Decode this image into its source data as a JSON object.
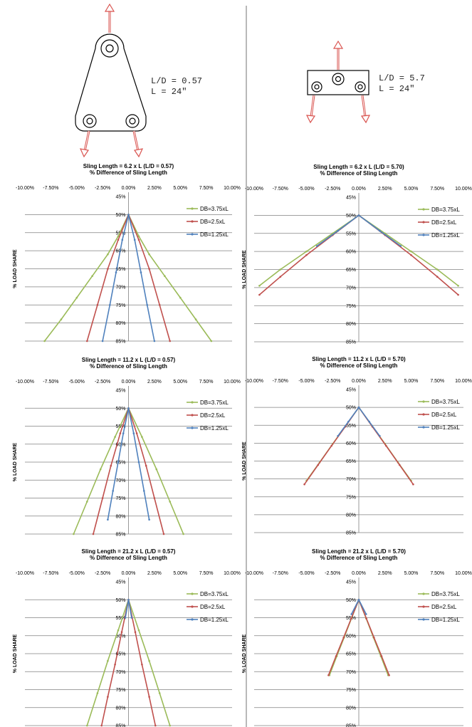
{
  "diagrams": [
    {
      "ld_label": "L/D = 0.57",
      "l_label": "L = 24\""
    },
    {
      "ld_label": "L/D = 5.7",
      "l_label": "L = 24\""
    }
  ],
  "colors": {
    "db375": "#9bbb59",
    "db25": "#c0504d",
    "db125": "#4f81bd",
    "arrow": "#d9534f"
  },
  "chart_data": [
    {
      "type": "line",
      "title": "Sling Length = 6.2 x L    (L/D = 0.57)",
      "xlabel": "% Difference of Sling Length",
      "ylabel": "% LOAD SHARE",
      "xlim": [
        -0.1,
        0.1
      ],
      "ylim": [
        0.45,
        0.85
      ],
      "y_inverted": true,
      "legend": "top-right",
      "x_ticks": [
        "-10.00%",
        "-7.50%",
        "-5.00%",
        "-2.50%",
        "0.00%",
        "2.50%",
        "5.00%",
        "7.50%",
        "10.00%"
      ],
      "y_ticks": [
        "45%",
        "50%",
        "55%",
        "60%",
        "65%",
        "70%",
        "75%",
        "80%",
        "85%"
      ],
      "series": [
        {
          "name": "DB=3.75xL",
          "color": "#9bbb59",
          "points": [
            [
              -0.081,
              0.85
            ],
            [
              -0.065,
              0.79
            ],
            [
              -0.05,
              0.73
            ],
            [
              -0.035,
              0.67
            ],
            [
              -0.02,
              0.61
            ],
            [
              -0.01,
              0.56
            ],
            [
              0,
              0.5
            ],
            [
              0.01,
              0.56
            ],
            [
              0.02,
              0.61
            ],
            [
              0.035,
              0.67
            ],
            [
              0.05,
              0.73
            ],
            [
              0.065,
              0.79
            ],
            [
              0.08,
              0.85
            ]
          ]
        },
        {
          "name": "DB=2.5xL",
          "color": "#c0504d",
          "points": [
            [
              -0.04,
              0.85
            ],
            [
              -0.03,
              0.75
            ],
            [
              -0.02,
              0.65
            ],
            [
              -0.01,
              0.57
            ],
            [
              0,
              0.5
            ],
            [
              0.01,
              0.57
            ],
            [
              0.02,
              0.65
            ],
            [
              0.03,
              0.75
            ],
            [
              0.04,
              0.85
            ]
          ]
        },
        {
          "name": "DB=1.25xL",
          "color": "#4f81bd",
          "points": [
            [
              -0.025,
              0.85
            ],
            [
              -0.018,
              0.75
            ],
            [
              -0.012,
              0.66
            ],
            [
              -0.006,
              0.57
            ],
            [
              0,
              0.5
            ],
            [
              0.006,
              0.57
            ],
            [
              0.012,
              0.66
            ],
            [
              0.018,
              0.75
            ],
            [
              0.025,
              0.85
            ]
          ]
        }
      ]
    },
    {
      "type": "line",
      "title": "Sling Length = 6.2 x L    (L/D = 5.70)",
      "xlabel": "% Difference of Sling Length",
      "ylabel": "% LOAD SHARE",
      "xlim": [
        -0.1,
        0.1
      ],
      "ylim": [
        0.45,
        0.85
      ],
      "y_inverted": true,
      "legend": "top-right",
      "x_ticks": [
        "-10.00%",
        "-7.50%",
        "-5.00%",
        "-2.50%",
        "0.00%",
        "2.50%",
        "5.00%",
        "7.50%",
        "10.00%"
      ],
      "y_ticks": [
        "45%",
        "50%",
        "55%",
        "60%",
        "65%",
        "70%",
        "75%",
        "80%",
        "85%"
      ],
      "series": [
        {
          "name": "DB=3.75xL",
          "color": "#9bbb59",
          "points": [
            [
              -0.095,
              0.695
            ],
            [
              -0.075,
              0.65
            ],
            [
              -0.05,
              0.6
            ],
            [
              -0.025,
              0.55
            ],
            [
              0,
              0.5
            ],
            [
              0.025,
              0.55
            ],
            [
              0.05,
              0.6
            ],
            [
              0.075,
              0.65
            ],
            [
              0.095,
              0.695
            ]
          ]
        },
        {
          "name": "DB=2.5xL",
          "color": "#c0504d",
          "points": [
            [
              -0.095,
              0.72
            ],
            [
              -0.075,
              0.67
            ],
            [
              -0.05,
              0.61
            ],
            [
              -0.025,
              0.555
            ],
            [
              0,
              0.5
            ],
            [
              0.025,
              0.555
            ],
            [
              0.05,
              0.61
            ],
            [
              0.075,
              0.67
            ],
            [
              0.095,
              0.72
            ]
          ]
        },
        {
          "name": "DB=1.25xL",
          "color": "#4f81bd",
          "points": [
            [
              -0.04,
              0.585
            ],
            [
              -0.02,
              0.543
            ],
            [
              0,
              0.5
            ],
            [
              0.02,
              0.543
            ],
            [
              0.04,
              0.585
            ]
          ]
        }
      ]
    },
    {
      "type": "line",
      "title": "Sling Length = 11.2 x L    (L/D = 0.57)",
      "xlabel": "% Difference of Sling Length",
      "ylabel": "% LOAD SHARE",
      "xlim": [
        -0.1,
        0.1
      ],
      "ylim": [
        0.45,
        0.85
      ],
      "y_inverted": true,
      "legend": "top-right",
      "x_ticks": [
        "-10.00%",
        "-7.50%",
        "-5.00%",
        "-2.50%",
        "0.00%",
        "2.50%",
        "5.00%",
        "7.50%",
        "10.00%"
      ],
      "y_ticks": [
        "45%",
        "50%",
        "55%",
        "60%",
        "65%",
        "70%",
        "75%",
        "80%",
        "85%"
      ],
      "series": [
        {
          "name": "DB=3.75xL",
          "color": "#9bbb59",
          "points": [
            [
              -0.053,
              0.85
            ],
            [
              -0.04,
              0.76
            ],
            [
              -0.027,
              0.67
            ],
            [
              -0.013,
              0.58
            ],
            [
              0,
              0.5
            ],
            [
              0.013,
              0.58
            ],
            [
              0.027,
              0.67
            ],
            [
              0.04,
              0.76
            ],
            [
              0.053,
              0.85
            ]
          ]
        },
        {
          "name": "DB=2.5xL",
          "color": "#c0504d",
          "points": [
            [
              -0.034,
              0.85
            ],
            [
              -0.025,
              0.75
            ],
            [
              -0.017,
              0.66
            ],
            [
              -0.008,
              0.57
            ],
            [
              0,
              0.5
            ],
            [
              0.008,
              0.57
            ],
            [
              0.017,
              0.66
            ],
            [
              0.025,
              0.75
            ],
            [
              0.034,
              0.85
            ]
          ]
        },
        {
          "name": "DB=1.25xL",
          "color": "#4f81bd",
          "points": [
            [
              -0.02,
              0.81
            ],
            [
              -0.015,
              0.73
            ],
            [
              -0.01,
              0.65
            ],
            [
              -0.005,
              0.57
            ],
            [
              0,
              0.5
            ],
            [
              0.005,
              0.57
            ],
            [
              0.01,
              0.65
            ],
            [
              0.015,
              0.73
            ],
            [
              0.02,
              0.81
            ]
          ]
        }
      ]
    },
    {
      "type": "line",
      "title": "Sling Length = 11.2 x L    (L/D = 5.70)",
      "xlabel": "% Difference of Sling Length",
      "ylabel": "% LOAD SHARE",
      "xlim": [
        -0.1,
        0.1
      ],
      "ylim": [
        0.45,
        0.85
      ],
      "y_inverted": true,
      "legend": "top-right",
      "x_ticks": [
        "-10.00%",
        "-7.50%",
        "-5.00%",
        "-2.50%",
        "0.00%",
        "2.50%",
        "5.00%",
        "7.50%",
        "10.00%"
      ],
      "y_ticks": [
        "45%",
        "50%",
        "55%",
        "60%",
        "65%",
        "70%",
        "75%",
        "80%",
        "85%"
      ],
      "series": [
        {
          "name": "DB=3.75xL",
          "color": "#9bbb59",
          "points": [
            [
              -0.05,
              0.705
            ],
            [
              -0.0375,
              0.654
            ],
            [
              -0.025,
              0.602
            ],
            [
              -0.0125,
              0.551
            ],
            [
              0,
              0.5
            ],
            [
              0.0125,
              0.551
            ],
            [
              0.025,
              0.602
            ],
            [
              0.0375,
              0.654
            ],
            [
              0.05,
              0.705
            ]
          ]
        },
        {
          "name": "DB=2.5xL",
          "color": "#c0504d",
          "points": [
            [
              -0.052,
              0.715
            ],
            [
              -0.039,
              0.661
            ],
            [
              -0.026,
              0.607
            ],
            [
              -0.013,
              0.554
            ],
            [
              0,
              0.5
            ],
            [
              0.013,
              0.554
            ],
            [
              0.026,
              0.607
            ],
            [
              0.039,
              0.661
            ],
            [
              0.052,
              0.715
            ]
          ]
        },
        {
          "name": "DB=1.25xL",
          "color": "#4f81bd",
          "points": [
            [
              -0.02,
              0.58
            ],
            [
              -0.01,
              0.54
            ],
            [
              0,
              0.5
            ],
            [
              0.01,
              0.54
            ],
            [
              0.02,
              0.58
            ]
          ]
        }
      ]
    },
    {
      "type": "line",
      "title": "Sling Length = 21.2 x L    (L/D = 0.57)",
      "xlabel": "% Difference of Sling Length",
      "ylabel": "% LOAD SHARE",
      "xlim": [
        -0.1,
        0.1
      ],
      "ylim": [
        0.45,
        0.85
      ],
      "y_inverted": true,
      "legend": "top-right",
      "x_ticks": [
        "-10.00%",
        "-7.50%",
        "-5.00%",
        "-2.50%",
        "0.00%",
        "2.50%",
        "5.00%",
        "7.50%",
        "10.00%"
      ],
      "y_ticks": [
        "45%",
        "50%",
        "55%",
        "60%",
        "65%",
        "70%",
        "75%",
        "80%",
        "85%"
      ],
      "series": [
        {
          "name": "DB=3.75xL",
          "color": "#9bbb59",
          "points": [
            [
              -0.04,
              0.85
            ],
            [
              -0.03,
              0.76
            ],
            [
              -0.02,
              0.67
            ],
            [
              -0.01,
              0.585
            ],
            [
              0,
              0.5
            ],
            [
              0.01,
              0.585
            ],
            [
              0.02,
              0.67
            ],
            [
              0.03,
              0.76
            ],
            [
              0.04,
              0.85
            ]
          ]
        },
        {
          "name": "DB=2.5xL",
          "color": "#c0504d",
          "points": [
            [
              -0.026,
              0.85
            ],
            [
              -0.02,
              0.77
            ],
            [
              -0.013,
              0.68
            ],
            [
              -0.0065,
              0.59
            ],
            [
              0,
              0.5
            ],
            [
              0.0065,
              0.59
            ],
            [
              0.013,
              0.68
            ],
            [
              0.02,
              0.77
            ],
            [
              0.026,
              0.85
            ]
          ]
        },
        {
          "name": "DB=1.25xL",
          "color": "#4f81bd",
          "points": [
            [
              -0.003,
              0.55
            ],
            [
              0,
              0.5
            ],
            [
              0.003,
              0.55
            ]
          ]
        }
      ]
    },
    {
      "type": "line",
      "title": "Sling Length = 21.2 x L    (L/D = 5.70)",
      "xlabel": "% Difference of Sling Length",
      "ylabel": "% LOAD SHARE",
      "xlim": [
        -0.1,
        0.1
      ],
      "ylim": [
        0.45,
        0.85
      ],
      "y_inverted": true,
      "legend": "top-right",
      "x_ticks": [
        "-10.00%",
        "-7.50%",
        "-5.00%",
        "-2.50%",
        "0.00%",
        "2.50%",
        "5.00%",
        "7.50%",
        "10.00%"
      ],
      "y_ticks": [
        "45%",
        "50%",
        "55%",
        "60%",
        "65%",
        "70%",
        "75%",
        "80%",
        "85%"
      ],
      "series": [
        {
          "name": "DB=3.75xL",
          "color": "#9bbb59",
          "points": [
            [
              -0.028,
              0.71
            ],
            [
              -0.021,
              0.657
            ],
            [
              -0.014,
              0.605
            ],
            [
              -0.007,
              0.552
            ],
            [
              0,
              0.5
            ],
            [
              0.007,
              0.552
            ],
            [
              0.014,
              0.605
            ],
            [
              0.021,
              0.657
            ],
            [
              0.028,
              0.71
            ]
          ]
        },
        {
          "name": "DB=2.5xL",
          "color": "#c0504d",
          "points": [
            [
              -0.029,
              0.71
            ],
            [
              -0.0218,
              0.657
            ],
            [
              -0.0145,
              0.605
            ],
            [
              -0.0072,
              0.552
            ],
            [
              0,
              0.5
            ],
            [
              0.0072,
              0.552
            ],
            [
              0.0145,
              0.605
            ],
            [
              0.0218,
              0.657
            ],
            [
              0.029,
              0.71
            ]
          ]
        },
        {
          "name": "DB=1.25xL",
          "color": "#4f81bd",
          "points": [
            [
              -0.007,
              0.54
            ],
            [
              0,
              0.5
            ],
            [
              0.007,
              0.54
            ]
          ]
        }
      ]
    }
  ]
}
